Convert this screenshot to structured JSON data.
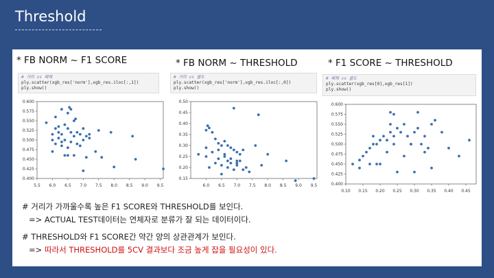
{
  "slide": {
    "title": "Threshold"
  },
  "plots": [
    {
      "header": "* FB NORM ~ F1 SCORE",
      "code": {
        "comment": "# 거리 vs 페제",
        "line1": "ply.scatter(xgb_res['norm'],xgb_res.iloc[:,1])",
        "line2": "ply.show()"
      }
    },
    {
      "header": "* FB NORM ~ THRESHOLD",
      "code": {
        "comment": "# 거리 vs 쿨도",
        "line1": "ply.scatter(xgb_res['norm'],xgb_res.iloc[:,0])",
        "line2": "ply.show()"
      }
    },
    {
      "header": "* F1 SCORE ~ THRESHOLD",
      "code": {
        "comment": "# 페제 vs 쿨도",
        "line1": "ply.scatter(xgb_res[0],xgb_res[1])",
        "line2": "ply.show()"
      }
    }
  ],
  "notes": {
    "line1": "# 거리가 가까울수록 높은 F1 SCORE와 THRESHOLD를 보인다.",
    "line2": "=> ACTUAL TEST데이터는 연체자로 분류가 잘 되는 데이터이다.",
    "line3": "# THRESHOLD와 F1 SCORE간 약간 양의 상관관계가 보인다.",
    "line4_prefix": "=> ",
    "line4_highlight": "따라서 THRESHOLD를 5CV 결과보다 조금 높게 잡을 필요성이 있다."
  },
  "colors": {
    "background": "#2e4f86",
    "point": "#3b6fb0",
    "highlight": "#d01010"
  },
  "chart_data": [
    {
      "type": "scatter",
      "xlim": [
        5.5,
        9.6
      ],
      "ylim": [
        0.4,
        0.6
      ],
      "xticks": [
        "5.5",
        "6.0",
        "6.5",
        "7.0",
        "7.5",
        "8.0",
        "8.5",
        "9.0",
        "9.5"
      ],
      "yticks": [
        "0.400",
        "0.425",
        "0.450",
        "0.475",
        "0.500",
        "0.525",
        "0.550",
        "0.575",
        "0.600"
      ],
      "x": [
        5.8,
        6.1,
        6.2,
        6.3,
        6.4,
        6.5,
        6.55,
        6.6,
        6.7,
        6.75,
        6.8,
        6.1,
        6.2,
        6.3,
        6.5,
        6.6,
        6.7,
        6.9,
        7.0,
        7.1,
        7.2,
        6.0,
        6.2,
        6.4,
        6.6,
        6.8,
        7.0,
        7.2,
        6.1,
        6.3,
        6.5,
        6.9,
        7.5,
        7.9,
        8.6,
        6.0,
        6.4,
        6.7,
        7.1,
        7.4,
        7.6,
        8.0,
        8.7,
        9.6,
        6.0,
        6.3,
        6.5,
        7.0
      ],
      "y": [
        0.545,
        0.56,
        0.535,
        0.58,
        0.54,
        0.57,
        0.585,
        0.58,
        0.55,
        0.555,
        0.52,
        0.53,
        0.52,
        0.515,
        0.53,
        0.52,
        0.51,
        0.515,
        0.53,
        0.51,
        0.515,
        0.515,
        0.505,
        0.5,
        0.495,
        0.49,
        0.5,
        0.505,
        0.49,
        0.485,
        0.48,
        0.485,
        0.525,
        0.52,
        0.51,
        0.47,
        0.46,
        0.46,
        0.455,
        0.47,
        0.455,
        0.43,
        0.45,
        0.425,
        0.5,
        0.495,
        0.46,
        0.42
      ]
    },
    {
      "type": "scatter",
      "xlim": [
        5.5,
        9.6
      ],
      "ylim": [
        0.15,
        0.5
      ],
      "xticks": [
        "6.0",
        "6.5",
        "7.0",
        "7.5",
        "8.0",
        "8.5",
        "9.0",
        "9.5"
      ],
      "yticks": [
        "0.15",
        "0.20",
        "0.25",
        "0.30",
        "0.35",
        "0.40",
        "0.45",
        "0.50"
      ],
      "x": [
        5.75,
        6.0,
        6.05,
        6.1,
        6.2,
        6.3,
        6.4,
        6.5,
        6.6,
        6.7,
        6.8,
        6.9,
        7.0,
        7.1,
        7.2,
        6.0,
        6.2,
        6.4,
        6.6,
        6.7,
        6.8,
        7.0,
        7.1,
        6.1,
        6.3,
        6.5,
        6.7,
        6.9,
        7.0,
        7.2,
        7.4,
        6.0,
        6.4,
        6.6,
        6.8,
        7.0,
        7.3,
        7.6,
        7.8,
        8.0,
        8.6,
        8.9,
        9.5,
        6.9,
        7.7,
        6.5
      ],
      "y": [
        0.26,
        0.37,
        0.39,
        0.38,
        0.36,
        0.33,
        0.31,
        0.3,
        0.32,
        0.3,
        0.29,
        0.28,
        0.27,
        0.26,
        0.28,
        0.25,
        0.27,
        0.24,
        0.25,
        0.23,
        0.22,
        0.21,
        0.23,
        0.2,
        0.22,
        0.21,
        0.2,
        0.19,
        0.22,
        0.19,
        0.18,
        0.29,
        0.28,
        0.26,
        0.24,
        0.23,
        0.2,
        0.3,
        0.21,
        0.26,
        0.23,
        0.14,
        0.15,
        0.47,
        0.44,
        0.17
      ]
    },
    {
      "type": "scatter",
      "xlim": [
        0.1,
        0.48
      ],
      "ylim": [
        0.4,
        0.6
      ],
      "xticks": [
        "0.10",
        "0.15",
        "0.20",
        "0.25",
        "0.30",
        "0.35",
        "0.40",
        "0.45"
      ],
      "yticks": [
        "0.400",
        "0.425",
        "0.450",
        "0.475",
        "0.500",
        "0.525",
        "0.550",
        "0.575",
        "0.600"
      ],
      "x": [
        0.12,
        0.14,
        0.15,
        0.16,
        0.17,
        0.18,
        0.18,
        0.19,
        0.2,
        0.21,
        0.22,
        0.23,
        0.23,
        0.24,
        0.25,
        0.26,
        0.27,
        0.28,
        0.29,
        0.3,
        0.31,
        0.32,
        0.33,
        0.34,
        0.35,
        0.36,
        0.38,
        0.4,
        0.43,
        0.46,
        0.14,
        0.2,
        0.25,
        0.3,
        0.17,
        0.22,
        0.27,
        0.33,
        0.19,
        0.24,
        0.29,
        0.23,
        0.24,
        0.31,
        0.35
      ],
      "y": [
        0.45,
        0.44,
        0.47,
        0.48,
        0.49,
        0.5,
        0.52,
        0.5,
        0.51,
        0.52,
        0.51,
        0.53,
        0.55,
        0.52,
        0.54,
        0.53,
        0.55,
        0.52,
        0.5,
        0.53,
        0.54,
        0.5,
        0.52,
        0.49,
        0.55,
        0.56,
        0.53,
        0.49,
        0.47,
        0.51,
        0.46,
        0.45,
        0.43,
        0.43,
        0.45,
        0.48,
        0.47,
        0.48,
        0.45,
        0.5,
        0.5,
        0.58,
        0.575,
        0.58,
        0.44
      ]
    }
  ]
}
